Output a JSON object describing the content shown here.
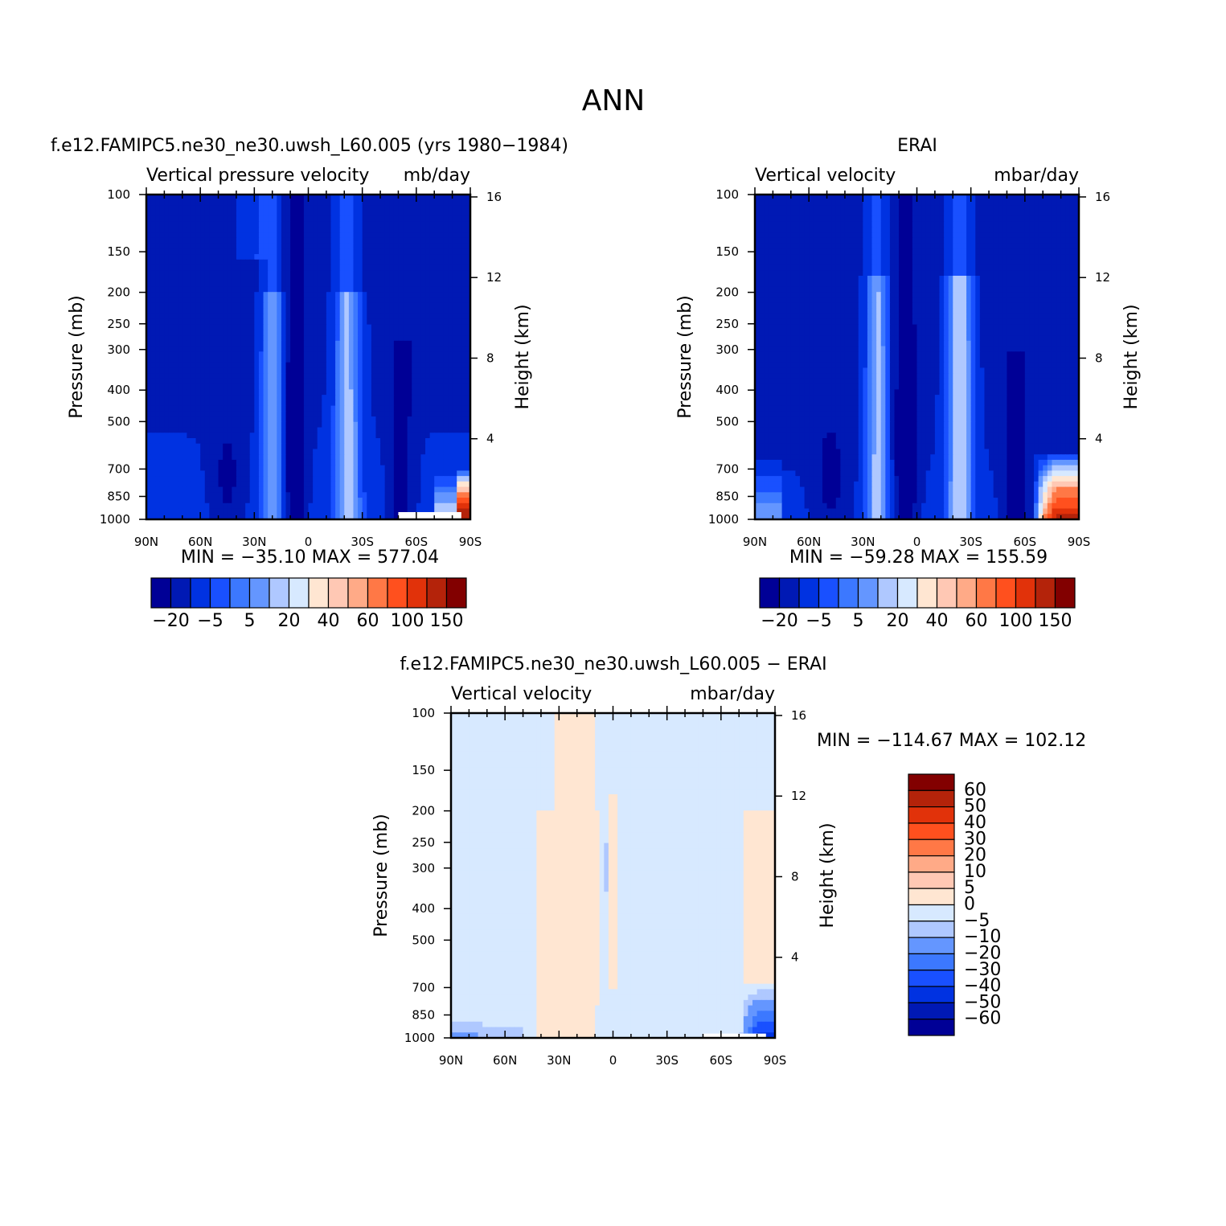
{
  "figure": {
    "season": "ANN"
  },
  "colors": {
    "fill_main": [
      "#000096",
      "#0019b4",
      "#0032e1",
      "#1950ff",
      "#3c78ff",
      "#6496ff",
      "#afc8ff",
      "#d7e9ff",
      "#ffe6d2",
      "#ffc8b4",
      "#ffaa87",
      "#ff7846",
      "#ff501e",
      "#e1320a",
      "#b4230a",
      "#820000"
    ],
    "fill_diff": [
      "#000096",
      "#0019b4",
      "#0032e1",
      "#1950ff",
      "#3c78ff",
      "#6496ff",
      "#afc8ff",
      "#d7e9ff",
      "#ffe6d2",
      "#ffc8b4",
      "#ffaa87",
      "#ff7846",
      "#ff501e",
      "#e1320a",
      "#b4230a",
      "#820000"
    ]
  },
  "chart_data": [
    {
      "type": "heatmap",
      "id": "model",
      "case_title": "f.e12.FAMIPC5.ne30_ne30.uwsh_L60.005 (yrs 1980-1984)",
      "variable": "Vertical pressure velocity",
      "units": "mb/day",
      "ylabel": "Pressure (mb)",
      "ylabel_right": "Height (km)",
      "xtick_labels": [
        "90N",
        "60N",
        "30N",
        "0",
        "30S",
        "60S",
        "90S"
      ],
      "xtick_values": [
        90,
        60,
        30,
        0,
        -30,
        -60,
        -90
      ],
      "ytick_values": [
        100,
        150,
        200,
        250,
        300,
        400,
        500,
        700,
        850,
        1000
      ],
      "ytick_labels": [
        "100",
        "150",
        "200",
        "250",
        "300",
        "400",
        "500",
        "700",
        "850",
        "1000"
      ],
      "height_ticks": [
        "16",
        "12",
        "8",
        "4"
      ],
      "height_values": [
        16,
        12,
        8,
        4
      ],
      "xlim": [
        90,
        -90
      ],
      "ylim": [
        1000,
        100
      ],
      "min_label": "MIN = -35.10",
      "max_label": "MAX = 577.04",
      "colorbar_labels": [
        "-20",
        "-5",
        "5",
        "20",
        "40",
        "60",
        "100",
        "150"
      ],
      "masked_region": {
        "lat": [
          -50,
          -85
        ],
        "p": [
          950,
          1000
        ]
      }
    },
    {
      "type": "heatmap",
      "id": "obs",
      "case_title": "ERAI",
      "variable": "Vertical velocity",
      "units": "mbar/day",
      "ylabel": "Pressure (mb)",
      "ylabel_right": "Height (km)",
      "xtick_labels": [
        "90N",
        "60N",
        "30N",
        "0",
        "30S",
        "60S",
        "90S"
      ],
      "xtick_values": [
        90,
        60,
        30,
        0,
        -30,
        -60,
        -90
      ],
      "ytick_values": [
        100,
        150,
        200,
        250,
        300,
        400,
        500,
        700,
        850,
        1000
      ],
      "ytick_labels": [
        "100",
        "150",
        "200",
        "250",
        "300",
        "400",
        "500",
        "700",
        "850",
        "1000"
      ],
      "height_ticks": [
        "16",
        "12",
        "8",
        "4"
      ],
      "height_values": [
        16,
        12,
        8,
        4
      ],
      "xlim": [
        90,
        -90
      ],
      "ylim": [
        1000,
        100
      ],
      "min_label": "MIN = -59.28",
      "max_label": "MAX = 155.59",
      "colorbar_labels": [
        "-20",
        "-5",
        "5",
        "20",
        "40",
        "60",
        "100",
        "150"
      ]
    },
    {
      "type": "heatmap",
      "id": "diff",
      "case_title": "f.e12.FAMIPC5.ne30_ne30.uwsh_L60.005 - ERAI",
      "variable": "Vertical velocity",
      "units": "mbar/day",
      "ylabel": "Pressure (mb)",
      "ylabel_right": "Height (km)",
      "xtick_labels": [
        "90N",
        "60N",
        "30N",
        "0",
        "30S",
        "60S",
        "90S"
      ],
      "xtick_values": [
        90,
        60,
        30,
        0,
        -30,
        -60,
        -90
      ],
      "ytick_values": [
        100,
        150,
        200,
        250,
        300,
        400,
        500,
        700,
        850,
        1000
      ],
      "ytick_labels": [
        "100",
        "150",
        "200",
        "250",
        "300",
        "400",
        "500",
        "700",
        "850",
        "1000"
      ],
      "height_ticks": [
        "16",
        "12",
        "8",
        "4"
      ],
      "height_values": [
        16,
        12,
        8,
        4
      ],
      "xlim": [
        90,
        -90
      ],
      "ylim": [
        1000,
        100
      ],
      "min_label": "MIN = -114.67",
      "max_label": "MAX = 102.12",
      "colorbar_labels": [
        "60",
        "50",
        "40",
        "30",
        "20",
        "10",
        "5",
        "0",
        "-5",
        "-10",
        "-20",
        "-30",
        "-40",
        "-50",
        "-60"
      ],
      "masked_region": {
        "lat": [
          -50,
          -85
        ],
        "p": [
          970,
          1000
        ]
      }
    }
  ]
}
